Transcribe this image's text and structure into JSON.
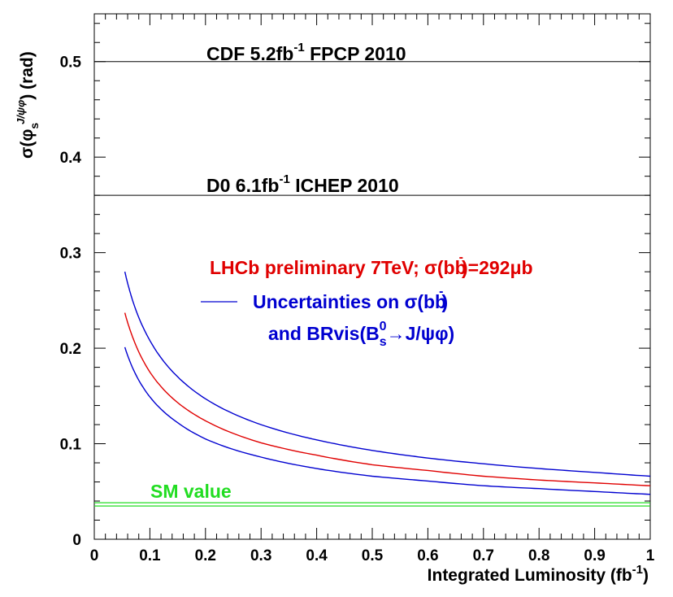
{
  "chart_data": {
    "type": "line",
    "title": "",
    "xlabel": "Integrated Luminosity (fb",
    "xlabel_sup": "-1",
    "xlabel_close": ")",
    "ylabel": "σ(φ",
    "ylabel_sub": "s",
    "ylabel_sup": "J/ψφ",
    "ylabel_close": ")  (rad)",
    "xlim": [
      0,
      1
    ],
    "ylim": [
      0,
      0.55
    ],
    "xticks": [
      0,
      0.1,
      0.2,
      0.3,
      0.4,
      0.5,
      0.6,
      0.7,
      0.8,
      0.9,
      1
    ],
    "xtick_labels": [
      "0",
      "0.1",
      "0.2",
      "0.3",
      "0.4",
      "0.5",
      "0.6",
      "0.7",
      "0.8",
      "0.9",
      "1"
    ],
    "yticks": [
      0,
      0.1,
      0.2,
      0.3,
      0.4,
      0.5
    ],
    "ytick_labels": [
      "0",
      "0.1",
      "0.2",
      "0.3",
      "0.4",
      "0.5"
    ],
    "series": [
      {
        "name": "LHCb preliminary 7TeV central",
        "color": "#e00000",
        "x": [
          0.055,
          0.07,
          0.1,
          0.15,
          0.2,
          0.3,
          0.4,
          0.5,
          0.6,
          0.7,
          0.8,
          0.9,
          1.0
        ],
        "y": [
          0.237,
          0.21,
          0.175,
          0.143,
          0.124,
          0.101,
          0.088,
          0.078,
          0.072,
          0.066,
          0.062,
          0.059,
          0.056
        ]
      },
      {
        "name": "Upper uncertainty band",
        "color": "#0000d0",
        "x": [
          0.055,
          0.07,
          0.1,
          0.15,
          0.2,
          0.3,
          0.4,
          0.5,
          0.6,
          0.7,
          0.8,
          0.9,
          1.0
        ],
        "y": [
          0.28,
          0.248,
          0.208,
          0.17,
          0.147,
          0.12,
          0.104,
          0.093,
          0.085,
          0.079,
          0.074,
          0.07,
          0.066
        ]
      },
      {
        "name": "Lower uncertainty band",
        "color": "#0000d0",
        "x": [
          0.055,
          0.07,
          0.1,
          0.15,
          0.2,
          0.3,
          0.4,
          0.5,
          0.6,
          0.7,
          0.8,
          0.9,
          1.0
        ],
        "y": [
          0.201,
          0.178,
          0.149,
          0.122,
          0.105,
          0.086,
          0.074,
          0.066,
          0.061,
          0.056,
          0.053,
          0.05,
          0.047
        ]
      }
    ],
    "reference_lines": [
      {
        "name": "CDF",
        "y": 0.5,
        "color": "#000000"
      },
      {
        "name": "D0",
        "y": 0.36,
        "color": "#000000"
      },
      {
        "name": "SM value",
        "y": 0.0365,
        "color": "#22dd22"
      }
    ],
    "annotations": {
      "cdf": {
        "main": "CDF 5.2fb",
        "sup": "-1",
        "tail": " FPCP 2010"
      },
      "d0": {
        "main": "D0 6.1fb",
        "sup": "-1",
        "tail": " ICHEP 2010"
      },
      "lhcb": {
        "main": "LHCb preliminary 7TeV;  σ(b",
        "bbar": "b",
        "bbar_mark": "-",
        "tail": ")=292μb"
      },
      "unc1": {
        "main": "Uncertainties on  σ(b",
        "bbar": "b",
        "bbar_mark": "-",
        "tail": ")"
      },
      "unc2": {
        "main": "and BRvis(B",
        "sub": "s",
        "sup": "0",
        "tail": "→J/ψφ)"
      },
      "sm": {
        "main": "SM value"
      }
    },
    "colors": {
      "red": "#e00000",
      "blue": "#0000d0",
      "green": "#22dd22",
      "black": "#000000"
    }
  }
}
